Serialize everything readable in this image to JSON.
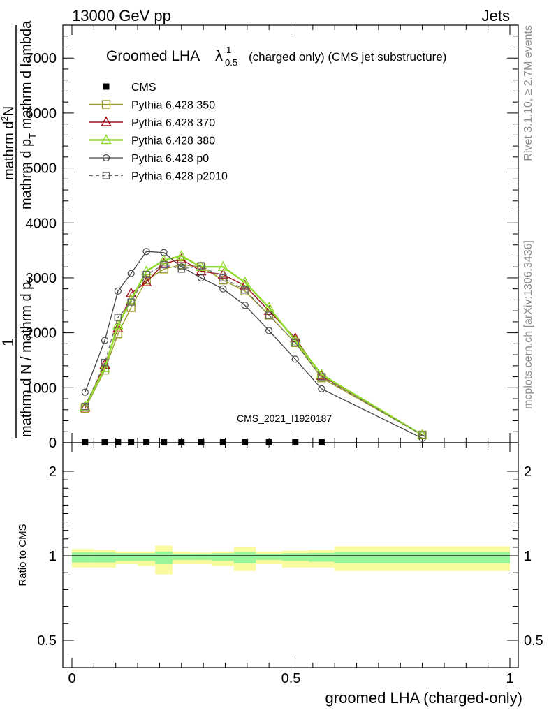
{
  "header": {
    "left": "13000 GeV pp",
    "right": "Jets"
  },
  "plot_title": {
    "main": "Groomed LHA",
    "lambda": "λ",
    "sub": "0.5",
    "sup": "1",
    "rest": "(charged only) (CMS jet substructure)"
  },
  "side_labels": {
    "rivet": "Rivet 3.1.10, ≥ 2.7M events",
    "mcplots": "mcplots.cern.ch [arXiv:1306.3436]"
  },
  "watermark": "CMS_2021_I1920187",
  "y_axis_label": {
    "one": "1",
    "den": "mathrm d N / mathrm d p",
    "den_sub": "T",
    "num_top": "mathrm d",
    "num_top_sup": "2",
    "num_top_rest": "N",
    "num_bottom": "mathrm d p",
    "num_bottom_sub": "T",
    "num_bottom_rest": " mathrm d lambda"
  },
  "ratio_y_label": "Ratio to CMS",
  "x_axis_label": "groomed LHA (charged-only)",
  "colors": {
    "cms": "#000000",
    "p350": "#9a9a2b",
    "p370": "#a01020",
    "p380": "#8fdc2a",
    "p0": "#444444",
    "p2010": "#666666",
    "band_inner": "#99f599",
    "band_outer": "#fafa9f"
  },
  "chart_data": [
    {
      "type": "line",
      "title": "Groomed LHA λ^1_0.5 (charged only) (CMS jet substructure)",
      "xlim": [
        0,
        1
      ],
      "ylim": [
        0,
        3.8
      ],
      "y_tick_values": [
        0,
        0.5,
        1,
        1.5,
        2,
        2.5,
        3,
        3.5
      ],
      "y_tick_labels": [
        "0",
        "1000",
        "2000",
        "3000",
        "4000",
        "5000",
        "6000",
        "7000"
      ],
      "legend": [
        "CMS",
        "Pythia 6.428 350",
        "Pythia 6.428 370",
        "Pythia 6.428 380",
        "Pythia 6.428 p0",
        "Pythia 6.428 p2010"
      ],
      "legend_position": "top-left",
      "x": [
        0.03,
        0.075,
        0.105,
        0.135,
        0.17,
        0.21,
        0.25,
        0.295,
        0.345,
        0.395,
        0.45,
        0.51,
        0.57,
        0.8
      ],
      "series": [
        {
          "name": "CMS",
          "marker": "square-filled",
          "values": [
            0.003,
            0.003,
            0.003,
            0.003,
            0.003,
            0.003,
            0.003,
            0.003,
            0.003,
            0.003,
            0.003,
            0.003,
            0.003,
            null
          ]
        },
        {
          "name": "Pythia 6.428 350",
          "marker": "square-open",
          "values": [
            0.31,
            0.66,
            0.99,
            1.23,
            1.48,
            1.58,
            1.62,
            1.6,
            1.48,
            1.38,
            1.16,
            0.91,
            0.59,
            0.07
          ]
        },
        {
          "name": "Pythia 6.428 370",
          "marker": "triangle-open",
          "values": [
            0.32,
            0.71,
            1.04,
            1.36,
            1.46,
            1.63,
            1.67,
            1.56,
            1.53,
            1.43,
            1.2,
            0.95,
            0.61,
            0.07
          ]
        },
        {
          "name": "Pythia 6.428 380",
          "marker": "triangle-open",
          "values": [
            0.33,
            0.68,
            1.07,
            1.3,
            1.56,
            1.66,
            1.7,
            1.6,
            1.6,
            1.46,
            1.23,
            0.93,
            0.62,
            0.07
          ]
        },
        {
          "name": "Pythia 6.428 p0",
          "marker": "circle-open",
          "values": [
            0.46,
            0.93,
            1.38,
            1.54,
            1.74,
            1.73,
            1.6,
            1.5,
            1.4,
            1.25,
            1.02,
            0.76,
            0.49,
            0.04
          ]
        },
        {
          "name": "Pythia 6.428 p2010",
          "marker": "square-open-dashed",
          "values": [
            0.33,
            0.73,
            1.14,
            1.28,
            1.53,
            1.62,
            1.58,
            1.61,
            1.5,
            1.39,
            1.16,
            0.91,
            0.6,
            0.07
          ]
        }
      ]
    },
    {
      "type": "area",
      "xlabel": "groomed LHA (charged-only)",
      "ylabel": "Ratio to CMS",
      "xlim": [
        0,
        1
      ],
      "ylim": [
        0.42,
        2.2
      ],
      "y_tick_values": [
        0.5,
        1,
        2
      ],
      "y_tick_labels": [
        "0.5",
        "1",
        "2"
      ],
      "x_tick_values": [
        0,
        0.5,
        1
      ],
      "x_tick_labels": [
        "0",
        "0.5",
        "1"
      ],
      "bins": [
        0,
        0.05,
        0.1,
        0.15,
        0.19,
        0.23,
        0.27,
        0.32,
        0.37,
        0.42,
        0.48,
        0.54,
        0.6,
        1.0
      ],
      "bin_display": [
        0.0,
        0.05,
        0.1,
        0.15,
        0.19,
        0.23,
        0.27,
        0.32,
        0.37,
        0.42,
        0.48,
        0.54,
        0.6,
        1.0
      ],
      "inner_band": [
        [
          0.96,
          1.04
        ],
        [
          0.96,
          1.04
        ],
        [
          0.97,
          1.03
        ],
        [
          0.97,
          1.03
        ],
        [
          0.95,
          1.05
        ],
        [
          0.975,
          1.025
        ],
        [
          0.975,
          1.025
        ],
        [
          0.97,
          1.03
        ],
        [
          0.955,
          1.045
        ],
        [
          0.975,
          1.025
        ],
        [
          0.97,
          1.03
        ],
        [
          0.965,
          1.035
        ],
        [
          0.955,
          1.045
        ]
      ],
      "outer_band": [
        [
          0.93,
          1.08
        ],
        [
          0.93,
          1.07
        ],
        [
          0.95,
          1.05
        ],
        [
          0.94,
          1.05
        ],
        [
          0.89,
          1.12
        ],
        [
          0.95,
          1.05
        ],
        [
          0.95,
          1.04
        ],
        [
          0.94,
          1.05
        ],
        [
          0.91,
          1.1
        ],
        [
          0.95,
          1.05
        ],
        [
          0.93,
          1.06
        ],
        [
          0.93,
          1.07
        ],
        [
          0.91,
          1.11
        ]
      ]
    }
  ]
}
